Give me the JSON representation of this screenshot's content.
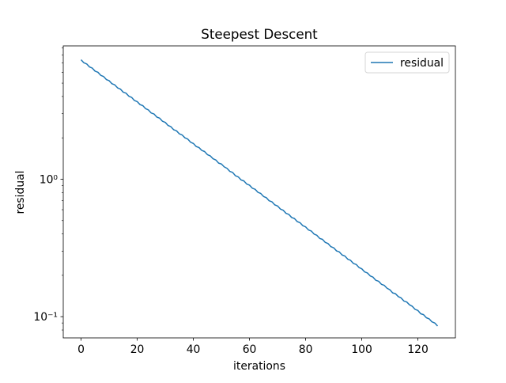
{
  "chart_data": {
    "type": "line",
    "title": "Steepest Descent",
    "x_label": "iterations",
    "y_label": "residual",
    "x": [
      0,
      1,
      2,
      3,
      4,
      5,
      6,
      7,
      8,
      9,
      10,
      11,
      12,
      13,
      14,
      15,
      16,
      17,
      18,
      19,
      20,
      21,
      22,
      23,
      24,
      25,
      26,
      27,
      28,
      29,
      30,
      31,
      32,
      33,
      34,
      35,
      36,
      37,
      38,
      39,
      40,
      41,
      42,
      43,
      44,
      45,
      46,
      47,
      48,
      49,
      50,
      51,
      52,
      53,
      54,
      55,
      56,
      57,
      58,
      59,
      60,
      61,
      62,
      63,
      64,
      65,
      66,
      67,
      68,
      69,
      70,
      71,
      72,
      73,
      74,
      75,
      76,
      77,
      78,
      79,
      80,
      81,
      82,
      83,
      84,
      85,
      86,
      87,
      88,
      89,
      90,
      91,
      92,
      93,
      94,
      95,
      96,
      97,
      98,
      99,
      100,
      101,
      102,
      103,
      104,
      105,
      106,
      107,
      108,
      109,
      110,
      111,
      112,
      113,
      114,
      115,
      116,
      117,
      118,
      119,
      120,
      121,
      122,
      123,
      124,
      125,
      126,
      127
    ],
    "series": [
      {
        "name": "residual",
        "color": "#1f77b4",
        "values": [
          7.4,
          7.03,
          6.9,
          6.56,
          6.43,
          6.11,
          6.0,
          5.7,
          5.59,
          5.31,
          5.21,
          4.95,
          4.86,
          4.62,
          4.53,
          4.3,
          4.23,
          4.02,
          3.94,
          3.74,
          3.67,
          3.49,
          3.43,
          3.26,
          3.19,
          3.03,
          2.98,
          2.83,
          2.78,
          2.64,
          2.59,
          2.46,
          2.41,
          2.29,
          2.25,
          2.14,
          2.1,
          2.0,
          1.96,
          1.86,
          1.82,
          1.73,
          1.7,
          1.62,
          1.59,
          1.51,
          1.48,
          1.41,
          1.38,
          1.31,
          1.29,
          1.23,
          1.2,
          1.14,
          1.12,
          1.06,
          1.04,
          0.988,
          0.972,
          0.923,
          0.906,
          0.861,
          0.845,
          0.803,
          0.788,
          0.749,
          0.734,
          0.697,
          0.685,
          0.651,
          0.639,
          0.607,
          0.595,
          0.565,
          0.555,
          0.527,
          0.518,
          0.492,
          0.483,
          0.459,
          0.45,
          0.428,
          0.42,
          0.399,
          0.391,
          0.371,
          0.365,
          0.347,
          0.34,
          0.323,
          0.317,
          0.301,
          0.296,
          0.281,
          0.276,
          0.262,
          0.257,
          0.244,
          0.24,
          0.228,
          0.223,
          0.212,
          0.208,
          0.198,
          0.194,
          0.184,
          0.181,
          0.172,
          0.169,
          0.161,
          0.157,
          0.149,
          0.147,
          0.14,
          0.137,
          0.13,
          0.128,
          0.122,
          0.119,
          0.113,
          0.111,
          0.105,
          0.1035,
          0.0983,
          0.0965,
          0.0917,
          0.09,
          0.0855
        ]
      }
    ],
    "xlim": [
      -6.35,
      133.35
    ],
    "xticks": [
      0,
      20,
      40,
      60,
      80,
      100,
      120
    ],
    "ylim": [
      0.0701,
      9.33
    ],
    "log_y": true,
    "yticks": [
      {
        "value": 0.1,
        "label": "10⁻¹"
      },
      {
        "value": 1,
        "label": "10⁰"
      }
    ],
    "yminorticks": [
      0.08,
      0.09,
      0.2,
      0.3,
      0.4,
      0.5,
      0.6,
      0.7,
      0.8,
      0.9,
      2,
      3,
      4,
      5,
      6,
      7,
      8,
      9
    ],
    "legend": "upper right"
  }
}
